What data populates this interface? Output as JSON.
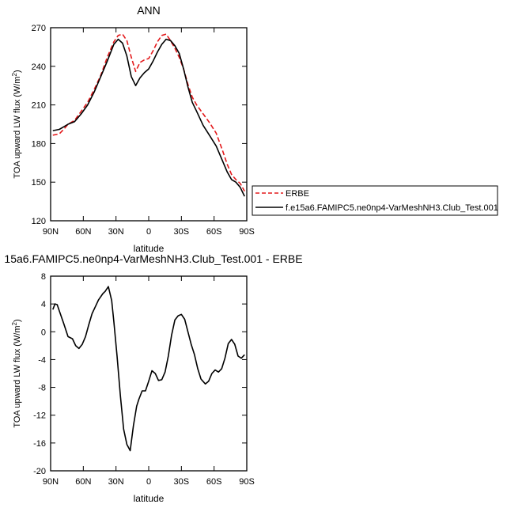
{
  "chart_data": [
    {
      "type": "line",
      "title": "ANN",
      "xlabel": "latitude",
      "ylabel": "TOA upward LW flux (W/m",
      "ylabel_sup": "2",
      "ylabel_close": ")",
      "xlim": [
        90,
        -90
      ],
      "ylim": [
        120,
        270
      ],
      "xticks": [
        {
          "value": 90,
          "label": "90N"
        },
        {
          "value": 60,
          "label": "60N"
        },
        {
          "value": 30,
          "label": "30N"
        },
        {
          "value": 0,
          "label": "0"
        },
        {
          "value": -30,
          "label": "30S"
        },
        {
          "value": -60,
          "label": "60S"
        },
        {
          "value": -90,
          "label": "90S"
        }
      ],
      "yticks": [
        {
          "value": 120,
          "label": "120"
        },
        {
          "value": 150,
          "label": "150"
        },
        {
          "value": 180,
          "label": "180"
        },
        {
          "value": 210,
          "label": "210"
        },
        {
          "value": 240,
          "label": "240"
        },
        {
          "value": 270,
          "label": "270"
        }
      ],
      "series": [
        {
          "name": "ERBE",
          "color": "#e31a1c",
          "dash": "dashed",
          "x": [
            88,
            82,
            78,
            74,
            68,
            62,
            56,
            50,
            44,
            38,
            32,
            28,
            24,
            20,
            16,
            12,
            8,
            4,
            0,
            -4,
            -8,
            -12,
            -16,
            -20,
            -24,
            -28,
            -32,
            -36,
            -40,
            -44,
            -50,
            -56,
            -62,
            -68,
            -72,
            -76,
            -80,
            -84,
            -88
          ],
          "y": [
            186.5,
            187.5,
            191,
            195,
            198,
            205,
            212,
            222,
            233,
            247,
            259,
            264,
            265,
            260,
            247,
            236,
            243,
            245,
            246,
            252,
            259,
            264,
            265,
            260,
            254,
            247,
            238,
            226,
            216,
            210,
            203,
            196,
            188,
            174,
            164,
            156,
            152,
            149,
            143
          ]
        },
        {
          "name": "f.e15a6.FAMIPC5.ne0np4-VarMeshNH3.Club_Test.001",
          "color": "#000000",
          "dash": "solid",
          "x": [
            88,
            82,
            78,
            74,
            68,
            62,
            56,
            50,
            44,
            38,
            32,
            28,
            24,
            20,
            16,
            12,
            8,
            4,
            0,
            -4,
            -8,
            -12,
            -16,
            -20,
            -24,
            -28,
            -32,
            -36,
            -40,
            -44,
            -50,
            -56,
            -62,
            -68,
            -72,
            -76,
            -80,
            -84,
            -88
          ],
          "y": [
            190,
            191,
            193,
            195,
            197,
            203,
            210,
            220,
            232,
            244,
            257,
            261,
            258,
            248,
            232,
            225,
            231,
            235,
            238,
            244,
            251,
            257,
            261,
            260,
            256,
            250,
            238,
            224,
            212,
            205,
            194,
            186,
            178,
            166,
            158,
            152,
            150,
            146,
            139
          ]
        }
      ]
    },
    {
      "type": "line",
      "title": "15a6.FAMIPC5.ne0np4-VarMeshNH3.Club_Test.001 - ERBE",
      "xlabel": "latitude",
      "ylabel": "TOA upward LW flux (W/m",
      "ylabel_sup": "2",
      "ylabel_close": ")",
      "xlim": [
        90,
        -90
      ],
      "ylim": [
        -20,
        8
      ],
      "xticks": [
        {
          "value": 90,
          "label": "90N"
        },
        {
          "value": 60,
          "label": "60N"
        },
        {
          "value": 30,
          "label": "30N"
        },
        {
          "value": 0,
          "label": "0"
        },
        {
          "value": -30,
          "label": "30S"
        },
        {
          "value": -60,
          "label": "60S"
        },
        {
          "value": -90,
          "label": "90S"
        }
      ],
      "yticks": [
        {
          "value": -20,
          "label": "-20"
        },
        {
          "value": -16,
          "label": "-16"
        },
        {
          "value": -12,
          "label": "-12"
        },
        {
          "value": -8,
          "label": "-8"
        },
        {
          "value": -4,
          "label": "-4"
        },
        {
          "value": 0,
          "label": "0"
        },
        {
          "value": 4,
          "label": "4"
        },
        {
          "value": 8,
          "label": "8"
        }
      ],
      "series": [
        {
          "color": "#000000",
          "dash": "solid",
          "x": [
            88,
            86,
            84,
            82,
            78,
            74,
            70,
            67,
            64,
            61,
            58,
            55,
            52,
            49,
            46,
            42,
            40,
            37,
            34,
            32,
            29,
            26,
            23,
            20,
            17,
            14,
            11,
            9,
            6,
            3,
            0,
            -3,
            -6,
            -9,
            -12,
            -15,
            -18,
            -21,
            -24,
            -27,
            -30,
            -33,
            -36,
            -39,
            -42,
            -45,
            -48,
            -52,
            -55,
            -58,
            -61,
            -64,
            -67,
            -70,
            -73,
            -76,
            -79,
            -82,
            -85,
            -88
          ],
          "y": [
            3.2,
            4,
            3.9,
            3,
            1.2,
            -0.7,
            -1,
            -2,
            -2.4,
            -1.8,
            -0.7,
            1,
            2.6,
            3.6,
            4.6,
            5.5,
            5.8,
            6.5,
            4.5,
            1.5,
            -3.5,
            -9.2,
            -14,
            -16.2,
            -17.1,
            -13.5,
            -10.7,
            -9.7,
            -8.5,
            -8.5,
            -7.1,
            -5.6,
            -6.0,
            -7.0,
            -6.9,
            -5.8,
            -3.5,
            -0.5,
            1.7,
            2.3,
            2.5,
            1.8,
            0,
            -1.8,
            -3.3,
            -5.3,
            -6.8,
            -7.5,
            -7.1,
            -6.0,
            -5.5,
            -5.8,
            -5.3,
            -3.8,
            -1.7,
            -1.1,
            -1.8,
            -3.5,
            -3.8,
            -3.3
          ]
        }
      ]
    }
  ]
}
